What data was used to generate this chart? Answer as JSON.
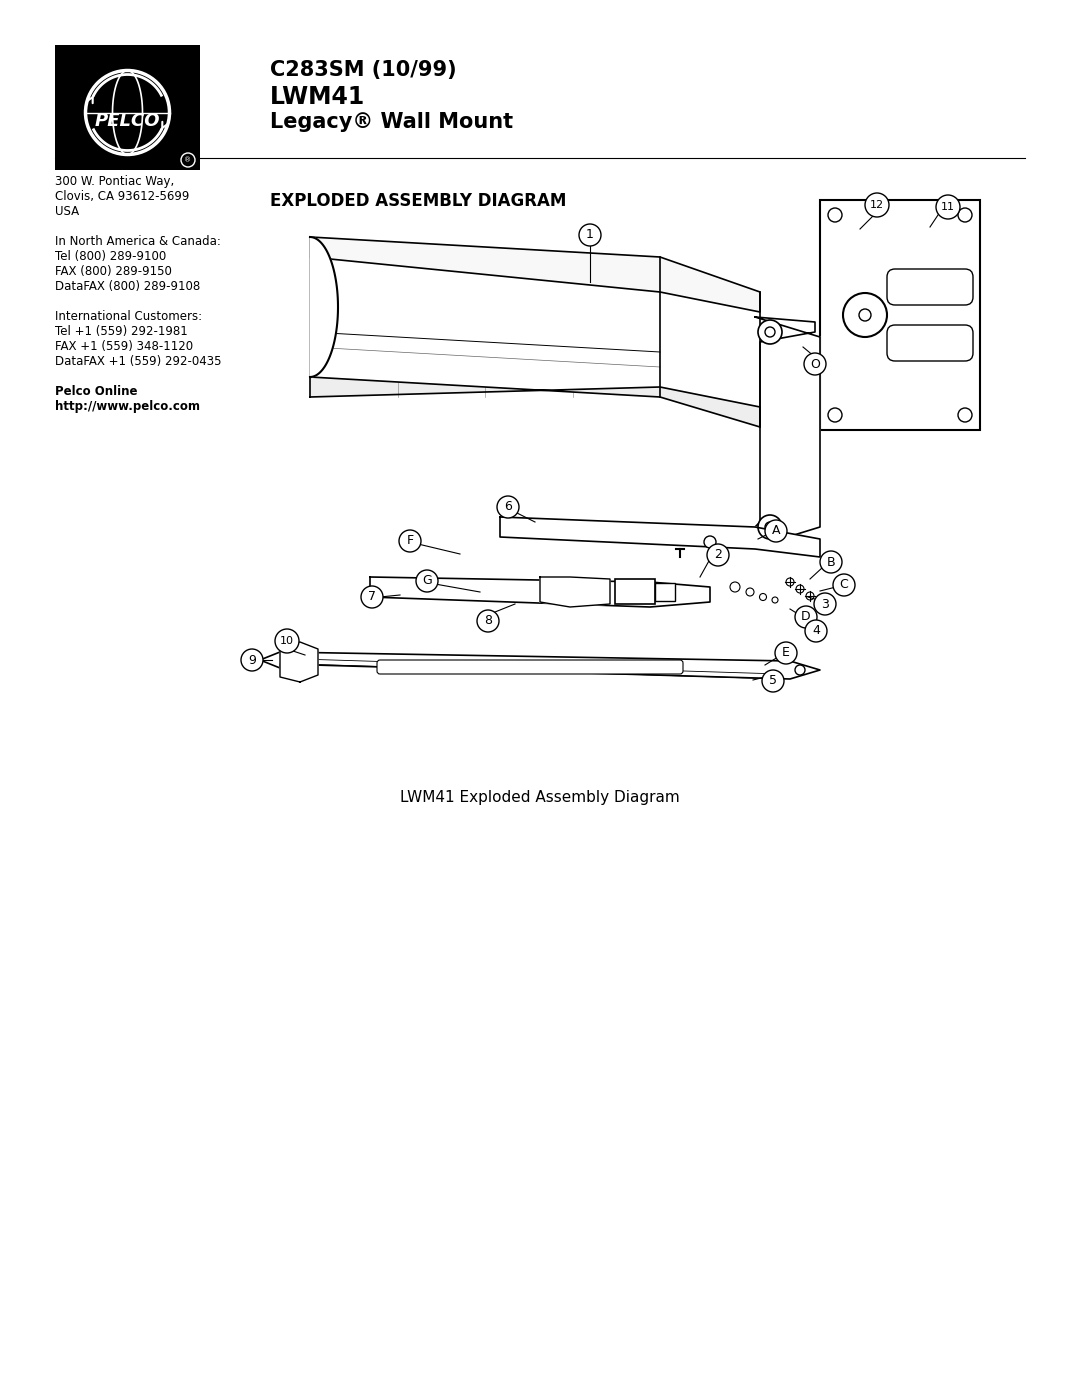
{
  "title_line1": "C283SM (10/99)",
  "title_line2": "LWM41",
  "title_line3": "Legacy® Wall Mount",
  "section_title": "EXPLODED ASSEMBLY DIAGRAM",
  "caption": "LWM41 Exploded Assembly Diagram",
  "address_lines": [
    "300 W. Pontiac Way,",
    "Clovis, CA 93612-5699",
    "USA",
    "",
    "In North America & Canada:",
    "Tel (800) 289-9100",
    "FAX (800) 289-9150",
    "DataFAX (800) 289-9108",
    "",
    "International Customers:",
    "Tel +1 (559) 292-1981",
    "FAX +1 (559) 348-1120",
    "DataFAX +1 (559) 292-0435",
    "",
    "Pelco Online",
    "http://www.pelco.com"
  ],
  "bold_lines": [
    "Pelco Online",
    "http://www.pelco.com"
  ],
  "bg_color": "#ffffff"
}
